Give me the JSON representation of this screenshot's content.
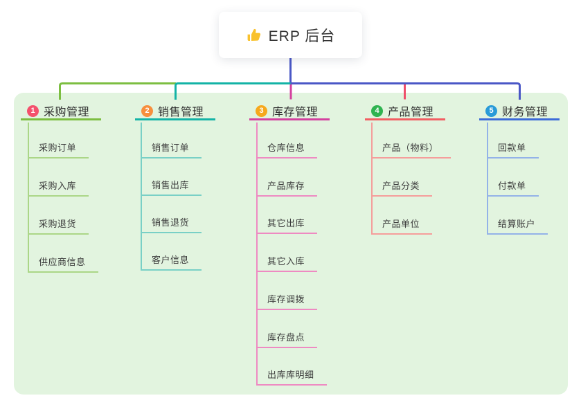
{
  "root": {
    "title": "ERP 后台",
    "icon": "thumbs-up-icon",
    "icon_color": "#f9c22e"
  },
  "colors": {
    "canvas_bg": "#ffffff",
    "panel_bg": "#e2f4df",
    "root_connector": "#4a57c6",
    "text": "#333333"
  },
  "branches": [
    {
      "badge": "1",
      "label": "采购管理",
      "badge_color": "#f4516c",
      "line_color": "#7cbe41",
      "child_line_color": "#abd687",
      "drop_color": "#7cbe41",
      "children": [
        "采购订单",
        "采购入库",
        "采购退货",
        "供应商信息"
      ]
    },
    {
      "badge": "2",
      "label": "销售管理",
      "badge_color": "#f78f3d",
      "line_color": "#14b3a6",
      "child_line_color": "#79d0c6",
      "drop_color": "#14b3a6",
      "children": [
        "销售订单",
        "销售出库",
        "销售退货",
        "客户信息"
      ]
    },
    {
      "badge": "3",
      "label": "库存管理",
      "badge_color": "#f6a81d",
      "line_color": "#d4419f",
      "child_line_color": "#ee8ac2",
      "drop_color": "#d4419f",
      "children": [
        "仓库信息",
        "产品库存",
        "其它出库",
        "其它入库",
        "库存调拨",
        "库存盘点",
        "出库库明细"
      ]
    },
    {
      "badge": "4",
      "label": "产品管理",
      "badge_color": "#2fb350",
      "line_color": "#f25e62",
      "child_line_color": "#f59d9b",
      "drop_color": "#ef4f6b",
      "children": [
        "产品（物料）",
        "产品分类",
        "产品单位"
      ]
    },
    {
      "badge": "5",
      "label": "财务管理",
      "badge_color": "#299bd8",
      "line_color": "#3c6bd8",
      "child_line_color": "#93b2e8",
      "drop_color": "#4a57c6",
      "children": [
        "回款单",
        "付款单",
        "结算账户"
      ]
    }
  ]
}
